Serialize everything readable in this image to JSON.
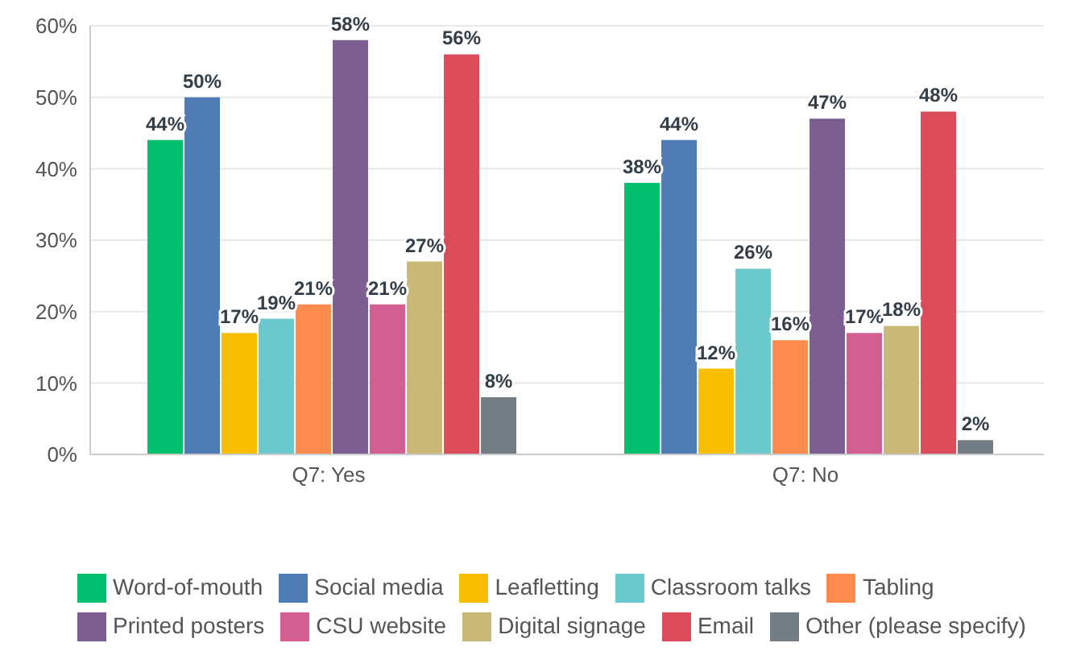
{
  "chart_data": {
    "type": "bar",
    "categories": [
      "Q7: Yes",
      "Q7: No"
    ],
    "series": [
      {
        "name": "Word-of-mouth",
        "color": "#00bf6f",
        "values": [
          44,
          38
        ],
        "value_labels": [
          "44%",
          "38%"
        ]
      },
      {
        "name": "Social media",
        "color": "#507cb6",
        "values": [
          50,
          44
        ],
        "value_labels": [
          "50%",
          "44%"
        ]
      },
      {
        "name": "Leafletting",
        "color": "#f9be00",
        "values": [
          17,
          12
        ],
        "value_labels": [
          "17%",
          "12%"
        ]
      },
      {
        "name": "Classroom talks",
        "color": "#6bc8cd",
        "values": [
          19,
          26
        ],
        "value_labels": [
          "19%",
          "26%"
        ]
      },
      {
        "name": "Tabling",
        "color": "#ff8b4f",
        "values": [
          21,
          16
        ],
        "value_labels": [
          "21%",
          "16%"
        ]
      },
      {
        "name": "Printed posters",
        "color": "#7d5e90",
        "values": [
          58,
          47
        ],
        "value_labels": [
          "58%",
          "47%"
        ]
      },
      {
        "name": "CSU website",
        "color": "#d25f90",
        "values": [
          21,
          17
        ],
        "value_labels": [
          "21%",
          "17%"
        ]
      },
      {
        "name": "Digital signage",
        "color": "#c9b877",
        "values": [
          27,
          18
        ],
        "value_labels": [
          "27%",
          "18%"
        ]
      },
      {
        "name": "Email",
        "color": "#dc4b5a",
        "values": [
          56,
          48
        ],
        "value_labels": [
          "56%",
          "48%"
        ]
      },
      {
        "name": "Other (please specify)",
        "color": "#757d84",
        "values": [
          8,
          2
        ],
        "value_labels": [
          "8%",
          "2%"
        ]
      }
    ],
    "ylim": [
      0,
      60
    ],
    "yticks": [
      {
        "value": 0,
        "label": "0%"
      },
      {
        "value": 10,
        "label": "10%"
      },
      {
        "value": 20,
        "label": "20%"
      },
      {
        "value": 30,
        "label": "30%"
      },
      {
        "value": 40,
        "label": "40%"
      },
      {
        "value": 50,
        "label": "50%"
      },
      {
        "value": 60,
        "label": "60%"
      }
    ],
    "grid": "y",
    "legend": "bottom"
  }
}
